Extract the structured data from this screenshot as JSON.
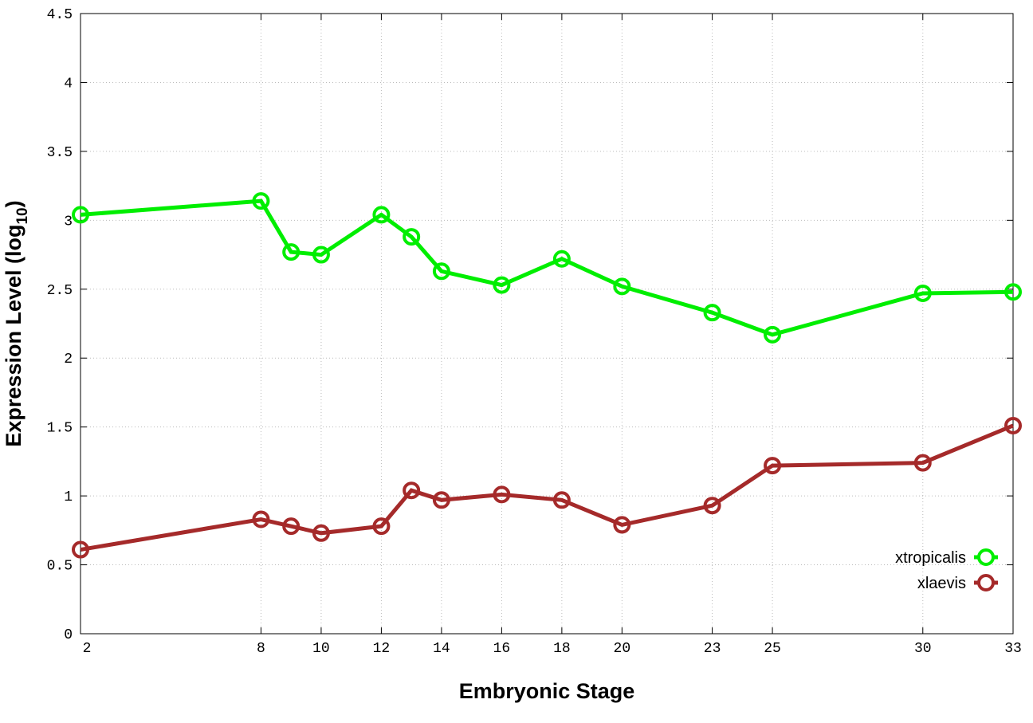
{
  "chart_data": {
    "type": "line",
    "title": "",
    "xlabel": "Embryonic Stage",
    "ylabel": "Expression Level (log",
    "ylabel_sub": "10",
    "ylabel_end": ")",
    "xlim": [
      2,
      33
    ],
    "ylim": [
      0,
      4.5
    ],
    "grid": true,
    "legend_position": "bottom-right",
    "x_ticks": [
      2,
      8,
      10,
      12,
      14,
      16,
      18,
      20,
      23,
      25,
      30,
      33
    ],
    "y_ticks": [
      0,
      0.5,
      1,
      1.5,
      2,
      2.5,
      3,
      3.5,
      4,
      4.5
    ],
    "y_tick_labels": [
      "0",
      "0.5",
      "1",
      "1.5",
      "2",
      "2.5",
      "3",
      "3.5",
      "4",
      "4.5"
    ],
    "x": [
      2,
      8,
      9,
      10,
      12,
      13,
      14,
      16,
      18,
      20,
      23,
      25,
      30,
      33
    ],
    "series": [
      {
        "name": "xtropicalis",
        "color": "#00ee00",
        "values": [
          3.04,
          3.14,
          2.77,
          2.75,
          3.04,
          2.88,
          2.63,
          2.53,
          2.72,
          2.52,
          2.33,
          2.17,
          2.47,
          2.48
        ]
      },
      {
        "name": "xlaevis",
        "color": "#a52a2a",
        "values": [
          0.61,
          0.83,
          0.78,
          0.73,
          0.78,
          1.04,
          0.97,
          1.01,
          0.97,
          0.79,
          0.93,
          1.22,
          1.24,
          1.51
        ]
      }
    ]
  }
}
